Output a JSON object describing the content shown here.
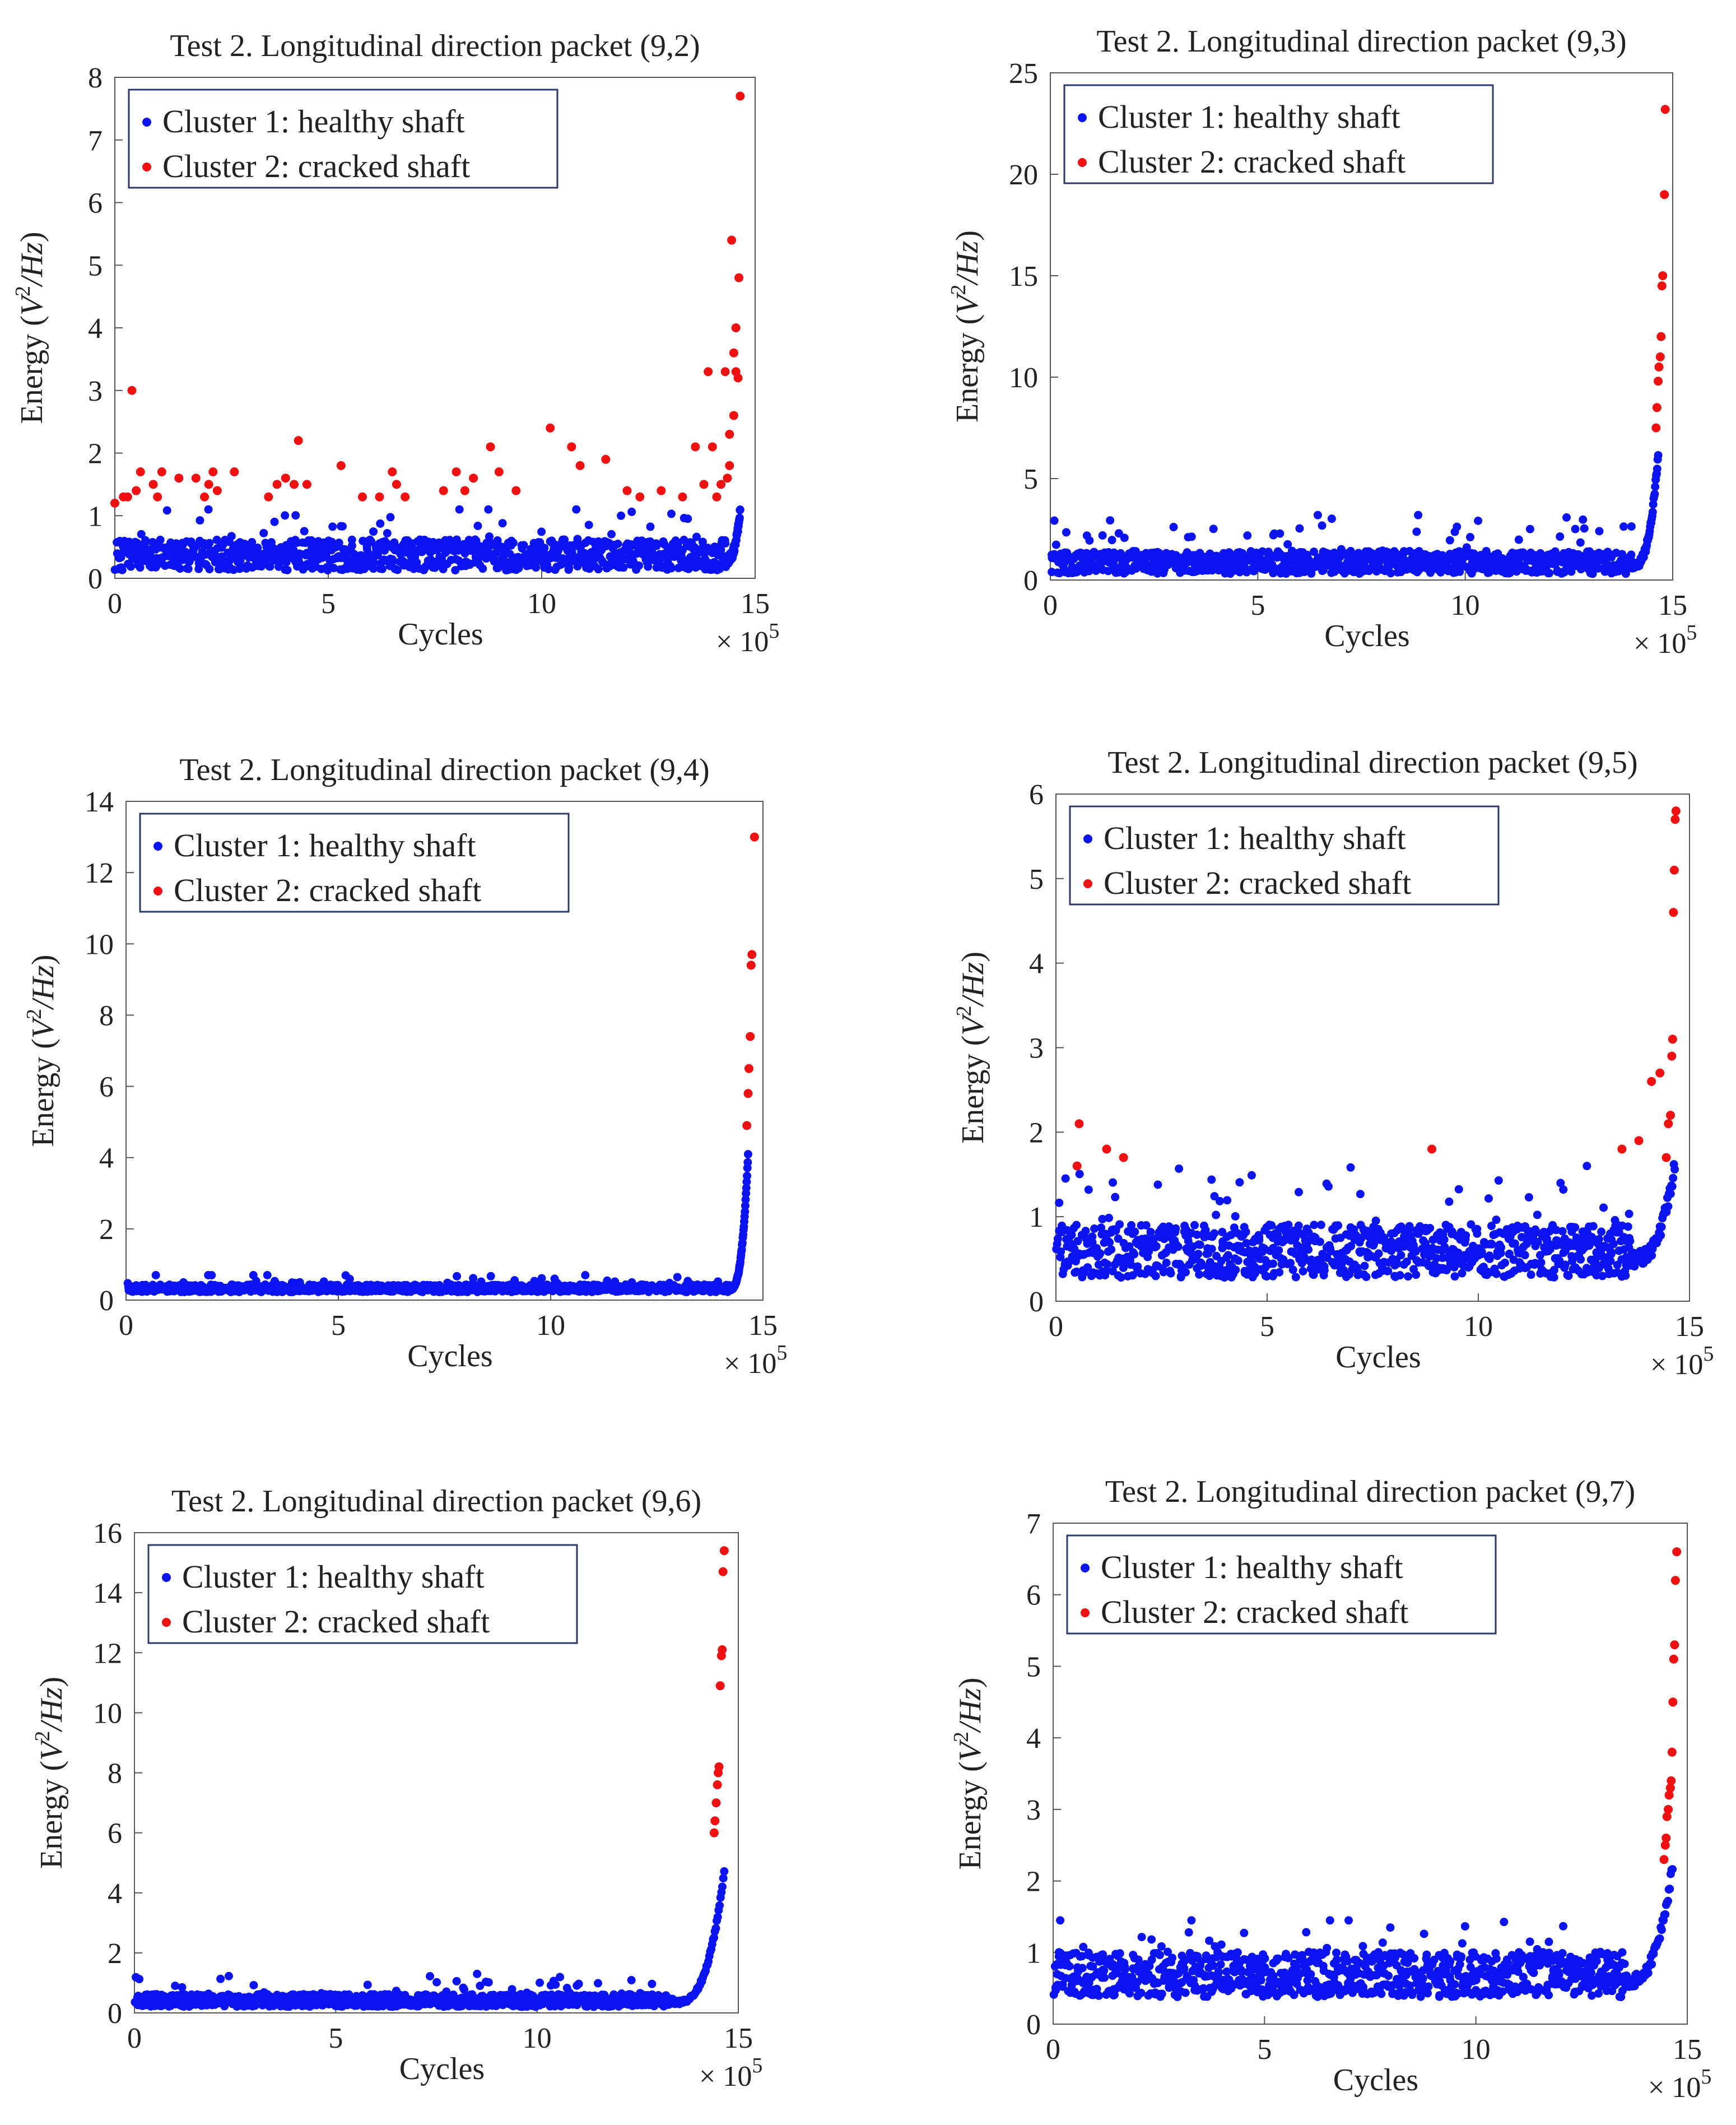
{
  "figure": {
    "axis_x_label": "Cycles",
    "axis_y_label": "Energy",
    "axis_y_unit": "V",
    "axis_y_unit_exp": "2",
    "axis_y_unit_den": "/Hz",
    "x_multiplier": "× 10",
    "x_multiplier_exp": "5",
    "legend_healthy": "Cluster 1: healthy shaft",
    "legend_cracked": "Cluster 2: cracked shaft",
    "healthy_color": "#0a14f0",
    "cracked_color": "#f01010",
    "frame_color": "#2b3a6b"
  },
  "chart_data": [
    {
      "type": "scatter",
      "title": "Test 2. Longitudinal direction packet (9,2)",
      "xlabel": "Cycles",
      "ylabel": "Energy (V^2/Hz)",
      "x_unit": "× 10^5 cycles",
      "xlim": [
        0,
        15
      ],
      "ylim": [
        0,
        8
      ],
      "xticks": [
        0,
        5,
        10,
        15
      ],
      "yticks": [
        0,
        1,
        2,
        3,
        4,
        5,
        6,
        7,
        8
      ],
      "legend": [
        "Cluster 1: healthy shaft",
        "Cluster 2: cracked shaft"
      ],
      "healthy": {
        "base": 0.3,
        "noise": 0.35,
        "max": 1.1,
        "rise_start": 14.3,
        "rise_peak": 1.1
      },
      "cracked_points": [
        [
          0.0,
          1.2
        ],
        [
          0.2,
          1.3
        ],
        [
          0.3,
          1.3
        ],
        [
          0.4,
          3.0
        ],
        [
          0.5,
          1.4
        ],
        [
          0.6,
          1.7
        ],
        [
          0.9,
          1.5
        ],
        [
          1.0,
          1.3
        ],
        [
          1.1,
          1.7
        ],
        [
          1.5,
          1.6
        ],
        [
          1.9,
          1.6
        ],
        [
          2.1,
          1.3
        ],
        [
          2.2,
          1.5
        ],
        [
          2.3,
          1.7
        ],
        [
          2.4,
          1.4
        ],
        [
          2.8,
          1.7
        ],
        [
          3.6,
          1.3
        ],
        [
          3.8,
          1.5
        ],
        [
          4.0,
          1.6
        ],
        [
          4.2,
          1.5
        ],
        [
          4.3,
          2.2
        ],
        [
          4.5,
          1.5
        ],
        [
          5.3,
          1.8
        ],
        [
          5.8,
          1.3
        ],
        [
          6.2,
          1.3
        ],
        [
          6.5,
          1.7
        ],
        [
          6.6,
          1.5
        ],
        [
          6.8,
          1.3
        ],
        [
          7.7,
          1.4
        ],
        [
          8.0,
          1.7
        ],
        [
          8.2,
          1.4
        ],
        [
          8.4,
          1.6
        ],
        [
          8.8,
          2.1
        ],
        [
          9.0,
          1.7
        ],
        [
          9.4,
          1.4
        ],
        [
          10.2,
          2.4
        ],
        [
          10.7,
          2.1
        ],
        [
          10.9,
          1.8
        ],
        [
          11.5,
          1.9
        ],
        [
          12.0,
          1.4
        ],
        [
          12.3,
          1.3
        ],
        [
          12.8,
          1.4
        ],
        [
          13.3,
          1.3
        ],
        [
          13.6,
          2.1
        ],
        [
          13.8,
          1.5
        ],
        [
          13.9,
          3.3
        ],
        [
          14.0,
          2.1
        ],
        [
          14.1,
          1.3
        ],
        [
          14.2,
          1.5
        ],
        [
          14.3,
          3.3
        ],
        [
          14.4,
          1.8
        ],
        [
          14.45,
          5.4
        ],
        [
          14.5,
          3.6
        ],
        [
          14.55,
          4.0
        ],
        [
          14.6,
          3.2
        ],
        [
          14.62,
          4.8
        ],
        [
          14.65,
          7.7
        ],
        [
          14.5,
          2.6
        ],
        [
          14.4,
          2.3
        ],
        [
          14.55,
          3.3
        ],
        [
          14.35,
          1.6
        ]
      ]
    },
    {
      "type": "scatter",
      "title": "Test 2. Longitudinal direction packet (9,3)",
      "xlabel": "Cycles",
      "ylabel": "Energy (V^2/Hz)",
      "x_unit": "× 10^5 cycles",
      "xlim": [
        0,
        15
      ],
      "ylim": [
        0,
        25
      ],
      "xticks": [
        0,
        5,
        10,
        15
      ],
      "yticks": [
        0,
        5,
        10,
        15,
        20,
        25
      ],
      "legend": [
        "Cluster 1: healthy shaft",
        "Cluster 2: cracked shaft"
      ],
      "healthy": {
        "base": 0.7,
        "noise": 0.8,
        "max": 3.2,
        "rise_start": 14.0,
        "rise_peak": 6.2
      },
      "cracked_points": [
        [
          14.6,
          7.5
        ],
        [
          14.62,
          8.5
        ],
        [
          14.65,
          9.8
        ],
        [
          14.67,
          10.5
        ],
        [
          14.7,
          11.0
        ],
        [
          14.72,
          12.0
        ],
        [
          14.74,
          14.5
        ],
        [
          14.76,
          15.0
        ],
        [
          14.8,
          19.0
        ],
        [
          14.82,
          23.2
        ]
      ]
    },
    {
      "type": "scatter",
      "title": "Test 2. Longitudinal direction packet (9,4)",
      "xlabel": "Cycles",
      "ylabel": "Energy (V^2/Hz)",
      "x_unit": "× 10^5 cycles",
      "xlim": [
        0,
        15
      ],
      "ylim": [
        0,
        14
      ],
      "xticks": [
        0,
        5,
        10,
        15
      ],
      "yticks": [
        0,
        2,
        4,
        6,
        8,
        10,
        12,
        14
      ],
      "legend": [
        "Cluster 1: healthy shaft",
        "Cluster 2: cracked shaft"
      ],
      "healthy": {
        "base": 0.3,
        "noise": 0.15,
        "max": 0.7,
        "rise_start": 14.2,
        "rise_peak": 4.1
      },
      "cracked_points": [
        [
          14.62,
          4.9
        ],
        [
          14.65,
          5.8
        ],
        [
          14.67,
          6.5
        ],
        [
          14.7,
          7.4
        ],
        [
          14.72,
          9.4
        ],
        [
          14.74,
          9.7
        ],
        [
          14.8,
          13.0
        ]
      ]
    },
    {
      "type": "scatter",
      "title": "Test 2. Longitudinal direction packet (9,5)",
      "xlabel": "Cycles",
      "ylabel": "Energy (V^2/Hz)",
      "x_unit": "× 10^5 cycles",
      "xlim": [
        0,
        15
      ],
      "ylim": [
        0,
        6
      ],
      "xticks": [
        0,
        5,
        10,
        15
      ],
      "yticks": [
        0,
        1,
        2,
        3,
        4,
        5,
        6
      ],
      "legend": [
        "Cluster 1: healthy shaft",
        "Cluster 2: cracked shaft"
      ],
      "healthy": {
        "base": 0.5,
        "noise": 0.45,
        "max": 1.6,
        "rise_start": 13.6,
        "rise_peak": 1.6
      },
      "cracked_points": [
        [
          0.5,
          1.6
        ],
        [
          0.55,
          2.1
        ],
        [
          1.2,
          1.8
        ],
        [
          1.6,
          1.7
        ],
        [
          8.9,
          1.8
        ],
        [
          13.4,
          1.8
        ],
        [
          13.8,
          1.9
        ],
        [
          14.1,
          2.6
        ],
        [
          14.3,
          2.7
        ],
        [
          14.45,
          1.7
        ],
        [
          14.5,
          2.1
        ],
        [
          14.55,
          2.2
        ],
        [
          14.58,
          2.9
        ],
        [
          14.6,
          3.1
        ],
        [
          14.62,
          4.6
        ],
        [
          14.64,
          5.1
        ],
        [
          14.66,
          5.7
        ],
        [
          14.68,
          5.8
        ]
      ]
    },
    {
      "type": "scatter",
      "title": "Test 2. Longitudinal direction packet (9,6)",
      "xlabel": "Cycles",
      "ylabel": "Energy (V^2/Hz)",
      "x_unit": "× 10^5 cycles",
      "xlim": [
        0,
        15
      ],
      "ylim": [
        0,
        16
      ],
      "xticks": [
        0,
        5,
        10,
        15
      ],
      "yticks": [
        0,
        2,
        4,
        6,
        8,
        10,
        12,
        14,
        16
      ],
      "legend": [
        "Cluster 1: healthy shaft",
        "Cluster 2: cracked shaft"
      ],
      "healthy": {
        "base": 0.35,
        "noise": 0.3,
        "max": 1.3,
        "rise_start": 13.4,
        "rise_peak": 4.7
      },
      "cracked_points": [
        [
          14.4,
          6.0
        ],
        [
          14.42,
          6.4
        ],
        [
          14.45,
          7.0
        ],
        [
          14.48,
          7.6
        ],
        [
          14.5,
          8.0
        ],
        [
          14.52,
          8.2
        ],
        [
          14.55,
          10.9
        ],
        [
          14.58,
          11.9
        ],
        [
          14.6,
          12.1
        ],
        [
          14.62,
          14.7
        ],
        [
          14.65,
          15.4
        ]
      ]
    },
    {
      "type": "scatter",
      "title": "Test 2. Longitudinal direction packet (9,7)",
      "xlabel": "Cycles",
      "ylabel": "Energy (V^2/Hz)",
      "x_unit": "× 10^5 cycles",
      "xlim": [
        0,
        15
      ],
      "ylim": [
        0,
        7
      ],
      "xticks": [
        0,
        5,
        10,
        15
      ],
      "yticks": [
        0,
        1,
        2,
        3,
        4,
        5,
        6,
        7
      ],
      "legend": [
        "Cluster 1: healthy shaft",
        "Cluster 2: cracked shaft"
      ],
      "healthy": {
        "base": 0.6,
        "noise": 0.45,
        "max": 1.45,
        "rise_start": 13.5,
        "rise_peak": 2.2
      },
      "cracked_points": [
        [
          14.45,
          2.3
        ],
        [
          14.48,
          2.5
        ],
        [
          14.5,
          2.6
        ],
        [
          14.52,
          2.9
        ],
        [
          14.55,
          3.0
        ],
        [
          14.57,
          3.2
        ],
        [
          14.6,
          3.3
        ],
        [
          14.62,
          3.4
        ],
        [
          14.64,
          3.8
        ],
        [
          14.66,
          4.5
        ],
        [
          14.68,
          5.1
        ],
        [
          14.7,
          5.3
        ],
        [
          14.72,
          6.2
        ],
        [
          14.75,
          6.6
        ]
      ]
    }
  ]
}
